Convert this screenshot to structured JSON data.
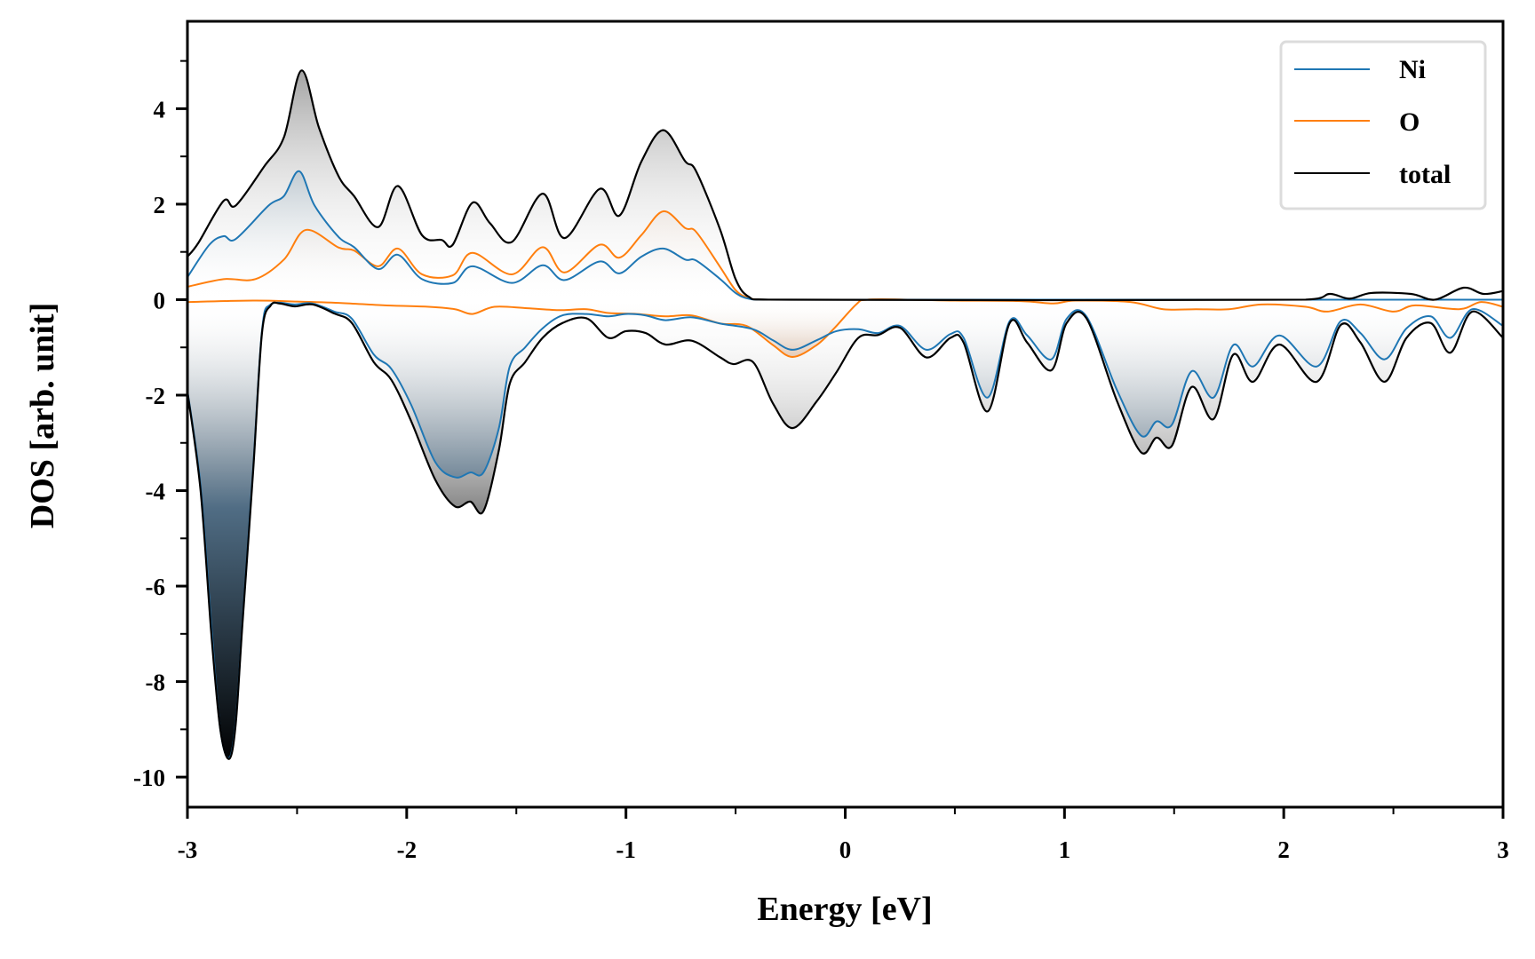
{
  "chart_data": {
    "type": "line",
    "title": "",
    "xlabel": "Energy [eV]",
    "ylabel": "DOS [arb. unit]",
    "xlim": [
      -3,
      3
    ],
    "ylim": [
      -10.63,
      5.83
    ],
    "xticks": [
      -3,
      -2,
      -1,
      0,
      1,
      2,
      3
    ],
    "xtick_labels": [
      "-3",
      "-2",
      "-1",
      "0",
      "1",
      "2",
      "3"
    ],
    "xminor_step": 0.5,
    "yticks": [
      -10,
      -8,
      -6,
      -4,
      -2,
      0,
      2,
      4
    ],
    "ytick_labels": [
      "-10",
      "-8",
      "-6",
      "-4",
      "-2",
      "0",
      "2",
      "4"
    ],
    "yminor_step": 1,
    "grid": false,
    "legend": {
      "placement": "top-right",
      "entries": [
        "Ni",
        "O",
        "total"
      ]
    },
    "series": [
      {
        "name": "total",
        "color": "#000000",
        "fill_color": "#8a8a8a",
        "spin_up": [
          [
            -3.0,
            0.9
          ],
          [
            -2.95,
            1.19
          ],
          [
            -2.835,
            2.07
          ],
          [
            -2.78,
            1.97
          ],
          [
            -2.65,
            2.79
          ],
          [
            -2.56,
            3.4
          ],
          [
            -2.48,
            4.8
          ],
          [
            -2.4,
            3.6
          ],
          [
            -2.31,
            2.58
          ],
          [
            -2.24,
            2.17
          ],
          [
            -2.13,
            1.52
          ],
          [
            -2.04,
            2.38
          ],
          [
            -1.93,
            1.35
          ],
          [
            -1.84,
            1.25
          ],
          [
            -1.79,
            1.15
          ],
          [
            -1.7,
            2.03
          ],
          [
            -1.62,
            1.6
          ],
          [
            -1.52,
            1.21
          ],
          [
            -1.38,
            2.22
          ],
          [
            -1.28,
            1.29
          ],
          [
            -1.12,
            2.32
          ],
          [
            -1.03,
            1.76
          ],
          [
            -0.93,
            2.89
          ],
          [
            -0.83,
            3.55
          ],
          [
            -0.73,
            2.9
          ],
          [
            -0.68,
            2.69
          ],
          [
            -0.57,
            1.46
          ],
          [
            -0.5,
            0.43
          ],
          [
            -0.44,
            0.06
          ],
          [
            -0.35,
            0.0
          ],
          [
            2.1,
            0.0
          ],
          [
            2.21,
            0.12
          ],
          [
            2.3,
            0.02
          ],
          [
            2.4,
            0.14
          ],
          [
            2.58,
            0.12
          ],
          [
            2.69,
            0.0
          ],
          [
            2.82,
            0.25
          ],
          [
            2.91,
            0.12
          ],
          [
            3.0,
            0.18
          ]
        ],
        "spin_down": [
          [
            -3.0,
            -1.93
          ],
          [
            -2.94,
            -4.0
          ],
          [
            -2.89,
            -7.06
          ],
          [
            -2.85,
            -9.0
          ],
          [
            -2.81,
            -9.62
          ],
          [
            -2.78,
            -8.9
          ],
          [
            -2.75,
            -6.85
          ],
          [
            -2.7,
            -3.57
          ],
          [
            -2.66,
            -0.7
          ],
          [
            -2.62,
            -0.12
          ],
          [
            -2.58,
            -0.08
          ],
          [
            -2.51,
            -0.14
          ],
          [
            -2.43,
            -0.1
          ],
          [
            -2.33,
            -0.29
          ],
          [
            -2.25,
            -0.49
          ],
          [
            -2.15,
            -1.31
          ],
          [
            -2.07,
            -1.68
          ],
          [
            -1.98,
            -2.54
          ],
          [
            -1.87,
            -3.77
          ],
          [
            -1.78,
            -4.33
          ],
          [
            -1.71,
            -4.23
          ],
          [
            -1.65,
            -4.43
          ],
          [
            -1.58,
            -3.16
          ],
          [
            -1.53,
            -1.76
          ],
          [
            -1.46,
            -1.31
          ],
          [
            -1.38,
            -0.8
          ],
          [
            -1.29,
            -0.49
          ],
          [
            -1.18,
            -0.39
          ],
          [
            -1.08,
            -0.8
          ],
          [
            -1.0,
            -0.66
          ],
          [
            -0.91,
            -0.7
          ],
          [
            -0.82,
            -0.94
          ],
          [
            -0.7,
            -0.86
          ],
          [
            -0.57,
            -1.21
          ],
          [
            -0.51,
            -1.35
          ],
          [
            -0.42,
            -1.31
          ],
          [
            -0.33,
            -2.17
          ],
          [
            -0.24,
            -2.69
          ],
          [
            -0.13,
            -2.13
          ],
          [
            -0.04,
            -1.52
          ],
          [
            0.06,
            -0.8
          ],
          [
            0.15,
            -0.74
          ],
          [
            0.25,
            -0.59
          ],
          [
            0.37,
            -1.21
          ],
          [
            0.48,
            -0.8
          ],
          [
            0.54,
            -0.9
          ],
          [
            0.65,
            -2.34
          ],
          [
            0.75,
            -0.49
          ],
          [
            0.83,
            -0.9
          ],
          [
            0.94,
            -1.48
          ],
          [
            1.01,
            -0.49
          ],
          [
            1.1,
            -0.39
          ],
          [
            1.24,
            -2.13
          ],
          [
            1.35,
            -3.2
          ],
          [
            1.42,
            -2.89
          ],
          [
            1.49,
            -3.06
          ],
          [
            1.58,
            -1.83
          ],
          [
            1.68,
            -2.5
          ],
          [
            1.77,
            -1.15
          ],
          [
            1.86,
            -1.72
          ],
          [
            1.98,
            -0.94
          ],
          [
            2.15,
            -1.72
          ],
          [
            2.26,
            -0.53
          ],
          [
            2.35,
            -0.9
          ],
          [
            2.46,
            -1.72
          ],
          [
            2.56,
            -0.8
          ],
          [
            2.67,
            -0.49
          ],
          [
            2.76,
            -1.11
          ],
          [
            2.86,
            -0.25
          ],
          [
            3.0,
            -0.8
          ]
        ]
      },
      {
        "name": "Ni",
        "color": "#1f77b4",
        "fill_color": "#2f5f80",
        "spin_up": [
          [
            -3.0,
            0.47
          ],
          [
            -2.9,
            1.15
          ],
          [
            -2.835,
            1.33
          ],
          [
            -2.78,
            1.27
          ],
          [
            -2.63,
            1.97
          ],
          [
            -2.56,
            2.17
          ],
          [
            -2.49,
            2.69
          ],
          [
            -2.42,
            1.97
          ],
          [
            -2.31,
            1.31
          ],
          [
            -2.24,
            1.1
          ],
          [
            -2.13,
            0.64
          ],
          [
            -2.04,
            0.94
          ],
          [
            -1.93,
            0.43
          ],
          [
            -1.79,
            0.35
          ],
          [
            -1.7,
            0.7
          ],
          [
            -1.52,
            0.35
          ],
          [
            -1.38,
            0.72
          ],
          [
            -1.28,
            0.41
          ],
          [
            -1.12,
            0.8
          ],
          [
            -1.03,
            0.55
          ],
          [
            -0.93,
            0.9
          ],
          [
            -0.83,
            1.07
          ],
          [
            -0.73,
            0.84
          ],
          [
            -0.68,
            0.82
          ],
          [
            -0.57,
            0.43
          ],
          [
            -0.5,
            0.14
          ],
          [
            -0.44,
            0.02
          ],
          [
            -0.35,
            0.0
          ],
          [
            3.0,
            0.0
          ]
        ],
        "spin_down": [
          [
            -3.0,
            -1.9
          ],
          [
            -2.94,
            -3.9
          ],
          [
            -2.89,
            -6.9
          ],
          [
            -2.85,
            -9.0
          ],
          [
            -2.81,
            -9.6
          ],
          [
            -2.78,
            -8.85
          ],
          [
            -2.75,
            -6.8
          ],
          [
            -2.7,
            -3.5
          ],
          [
            -2.66,
            -0.65
          ],
          [
            -2.62,
            -0.1
          ],
          [
            -2.51,
            -0.1
          ],
          [
            -2.43,
            -0.08
          ],
          [
            -2.33,
            -0.25
          ],
          [
            -2.25,
            -0.4
          ],
          [
            -2.15,
            -1.15
          ],
          [
            -2.07,
            -1.45
          ],
          [
            -1.98,
            -2.2
          ],
          [
            -1.87,
            -3.4
          ],
          [
            -1.78,
            -3.72
          ],
          [
            -1.71,
            -3.62
          ],
          [
            -1.65,
            -3.62
          ],
          [
            -1.58,
            -2.7
          ],
          [
            -1.53,
            -1.4
          ],
          [
            -1.46,
            -1.0
          ],
          [
            -1.38,
            -0.6
          ],
          [
            -1.29,
            -0.33
          ],
          [
            -1.18,
            -0.3
          ],
          [
            -1.08,
            -0.35
          ],
          [
            -1.0,
            -0.3
          ],
          [
            -0.91,
            -0.33
          ],
          [
            -0.82,
            -0.43
          ],
          [
            -0.7,
            -0.37
          ],
          [
            -0.57,
            -0.5
          ],
          [
            -0.42,
            -0.62
          ],
          [
            -0.33,
            -0.85
          ],
          [
            -0.24,
            -1.05
          ],
          [
            -0.13,
            -0.85
          ],
          [
            -0.04,
            -0.66
          ],
          [
            0.06,
            -0.62
          ],
          [
            0.15,
            -0.7
          ],
          [
            0.25,
            -0.55
          ],
          [
            0.37,
            -1.05
          ],
          [
            0.48,
            -0.72
          ],
          [
            0.54,
            -0.8
          ],
          [
            0.65,
            -2.05
          ],
          [
            0.75,
            -0.45
          ],
          [
            0.83,
            -0.75
          ],
          [
            0.94,
            -1.25
          ],
          [
            1.01,
            -0.4
          ],
          [
            1.1,
            -0.35
          ],
          [
            1.24,
            -1.9
          ],
          [
            1.35,
            -2.85
          ],
          [
            1.42,
            -2.55
          ],
          [
            1.49,
            -2.62
          ],
          [
            1.58,
            -1.5
          ],
          [
            1.68,
            -2.05
          ],
          [
            1.77,
            -0.95
          ],
          [
            1.86,
            -1.4
          ],
          [
            1.98,
            -0.75
          ],
          [
            2.15,
            -1.4
          ],
          [
            2.26,
            -0.45
          ],
          [
            2.35,
            -0.7
          ],
          [
            2.46,
            -1.25
          ],
          [
            2.56,
            -0.6
          ],
          [
            2.67,
            -0.35
          ],
          [
            2.76,
            -0.8
          ],
          [
            2.86,
            -0.2
          ],
          [
            3.0,
            -0.55
          ]
        ]
      },
      {
        "name": "O",
        "color": "#ff7f0e",
        "fill_color": "#c8895a",
        "spin_up": [
          [
            -3.0,
            0.27
          ],
          [
            -2.835,
            0.43
          ],
          [
            -2.69,
            0.43
          ],
          [
            -2.56,
            0.84
          ],
          [
            -2.46,
            1.46
          ],
          [
            -2.31,
            1.09
          ],
          [
            -2.24,
            1.03
          ],
          [
            -2.13,
            0.7
          ],
          [
            -2.04,
            1.07
          ],
          [
            -1.93,
            0.53
          ],
          [
            -1.79,
            0.51
          ],
          [
            -1.7,
            0.98
          ],
          [
            -1.52,
            0.53
          ],
          [
            -1.38,
            1.1
          ],
          [
            -1.28,
            0.57
          ],
          [
            -1.12,
            1.15
          ],
          [
            -1.03,
            0.88
          ],
          [
            -0.93,
            1.35
          ],
          [
            -0.83,
            1.85
          ],
          [
            -0.73,
            1.5
          ],
          [
            -0.68,
            1.42
          ],
          [
            -0.57,
            0.68
          ],
          [
            -0.5,
            0.2
          ],
          [
            -0.44,
            0.04
          ],
          [
            -0.35,
            0.0
          ],
          [
            3.0,
            0.0
          ]
        ],
        "spin_down": [
          [
            -3.0,
            -0.05
          ],
          [
            -2.7,
            -0.02
          ],
          [
            -2.5,
            -0.04
          ],
          [
            -2.3,
            -0.07
          ],
          [
            -2.1,
            -0.12
          ],
          [
            -1.9,
            -0.15
          ],
          [
            -1.78,
            -0.2
          ],
          [
            -1.7,
            -0.3
          ],
          [
            -1.6,
            -0.15
          ],
          [
            -1.45,
            -0.18
          ],
          [
            -1.3,
            -0.22
          ],
          [
            -1.18,
            -0.2
          ],
          [
            -1.08,
            -0.28
          ],
          [
            -0.95,
            -0.3
          ],
          [
            -0.82,
            -0.35
          ],
          [
            -0.7,
            -0.33
          ],
          [
            -0.57,
            -0.5
          ],
          [
            -0.45,
            -0.55
          ],
          [
            -0.33,
            -0.95
          ],
          [
            -0.24,
            -1.2
          ],
          [
            -0.13,
            -0.95
          ],
          [
            -0.05,
            -0.6
          ],
          [
            0.05,
            -0.1
          ],
          [
            0.1,
            0.0
          ],
          [
            0.3,
            0.0
          ],
          [
            0.5,
            -0.02
          ],
          [
            0.8,
            -0.03
          ],
          [
            0.95,
            -0.08
          ],
          [
            1.05,
            -0.02
          ],
          [
            1.3,
            -0.05
          ],
          [
            1.45,
            -0.2
          ],
          [
            1.6,
            -0.2
          ],
          [
            1.75,
            -0.2
          ],
          [
            1.9,
            -0.1
          ],
          [
            2.1,
            -0.15
          ],
          [
            2.2,
            -0.25
          ],
          [
            2.35,
            -0.1
          ],
          [
            2.5,
            -0.25
          ],
          [
            2.6,
            -0.12
          ],
          [
            2.8,
            -0.2
          ],
          [
            2.9,
            -0.05
          ],
          [
            3.0,
            -0.15
          ]
        ]
      }
    ]
  }
}
